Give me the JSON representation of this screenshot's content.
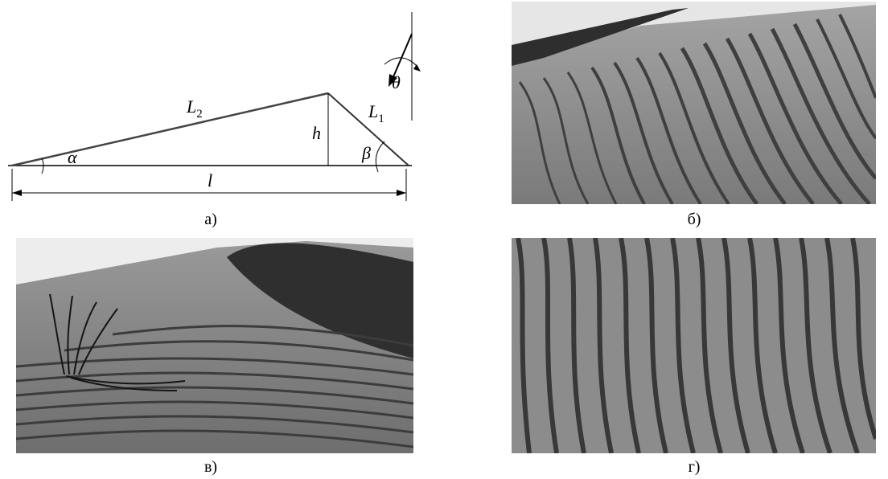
{
  "panels": {
    "a": {
      "caption": "а)",
      "labels": {
        "L2": "L",
        "L2_sub": "2",
        "L1": "L",
        "L1_sub": "1",
        "h": "h",
        "alpha": "α",
        "beta": "β",
        "theta": "θ",
        "l": "l"
      }
    },
    "b": {
      "caption": "б)"
    },
    "v": {
      "caption": "в)"
    },
    "g": {
      "caption": "г)"
    }
  },
  "colors": {
    "sky_light": "#eeeeee",
    "dune_shadow": "#2f2f2f",
    "sand_base": "#8a8a8a",
    "ripple_dark": "#3a3a3a",
    "plant": "#1a1a1a"
  }
}
